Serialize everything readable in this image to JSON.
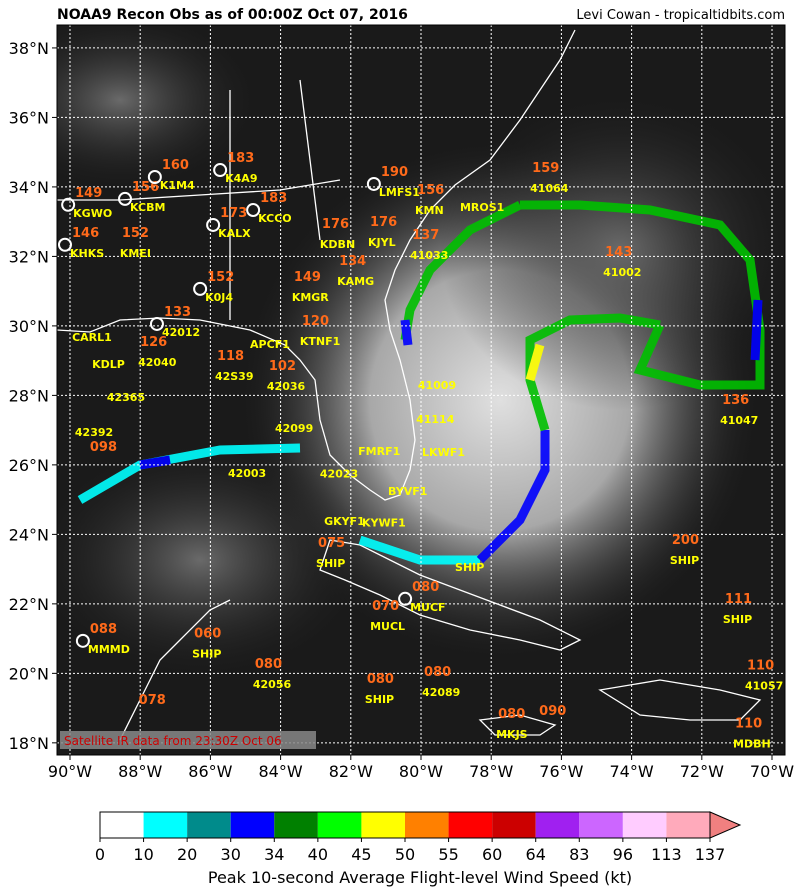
{
  "header": {
    "title": "NOAA9 Recon Obs as of 00:00Z Oct 07, 2016",
    "credit": "Levi Cowan - tropicaltidbits.com"
  },
  "map": {
    "lon_range": [
      -90.37,
      -69.63
    ],
    "lat_range": [
      17.65,
      38.66
    ],
    "lon_ticks": [
      {
        "value": -90,
        "label": "90°W"
      },
      {
        "value": -88,
        "label": "88°W"
      },
      {
        "value": -86,
        "label": "86°W"
      },
      {
        "value": -84,
        "label": "84°W"
      },
      {
        "value": -82,
        "label": "82°W"
      },
      {
        "value": -80,
        "label": "80°W"
      },
      {
        "value": -78,
        "label": "78°W"
      },
      {
        "value": -76,
        "label": "76°W"
      },
      {
        "value": -74,
        "label": "74°W"
      },
      {
        "value": -72,
        "label": "72°W"
      },
      {
        "value": -70,
        "label": "70°W"
      }
    ],
    "lat_ticks": [
      {
        "value": 38,
        "label": "38°N"
      },
      {
        "value": 36,
        "label": "36°N"
      },
      {
        "value": 34,
        "label": "34°N"
      },
      {
        "value": 32,
        "label": "32°N"
      },
      {
        "value": 30,
        "label": "30°N"
      },
      {
        "value": 28,
        "label": "28°N"
      },
      {
        "value": 26,
        "label": "26°N"
      },
      {
        "value": 24,
        "label": "24°N"
      },
      {
        "value": 22,
        "label": "22°N"
      },
      {
        "value": 20,
        "label": "20°N"
      },
      {
        "value": 18,
        "label": "18°N"
      }
    ],
    "note": "Satellite IR data from 23:30Z Oct 06",
    "stations": [
      {
        "id": "KGWO",
        "wind": "149",
        "lon": -89.91,
        "lat": 33.14,
        "marker": true
      },
      {
        "id": "KCBM",
        "wind": "156",
        "lon": -88.29,
        "lat": 33.31,
        "marker": true
      },
      {
        "id": "K1M4",
        "wind": "160",
        "lon": -87.44,
        "lat": 33.94,
        "marker": true
      },
      {
        "id": "K4A9",
        "wind": "183",
        "lon": -85.58,
        "lat": 34.14,
        "marker": true
      },
      {
        "id": "KHKS",
        "wind": "146",
        "lon": -90.0,
        "lat": 31.99,
        "marker": true
      },
      {
        "id": "KMEI",
        "wind": "152",
        "lon": -88.58,
        "lat": 31.99
      },
      {
        "id": "KALX",
        "wind": "173",
        "lon": -85.78,
        "lat": 32.56,
        "marker": true
      },
      {
        "id": "KCCO",
        "wind": "183",
        "lon": -84.64,
        "lat": 32.99,
        "marker": true
      },
      {
        "id": "KDBN",
        "wind": "176",
        "lon": -82.88,
        "lat": 32.24
      },
      {
        "id": "K0J4",
        "wind": "152",
        "lon": -86.15,
        "lat": 30.72,
        "marker": true
      },
      {
        "id": "KMGR",
        "wind": "149",
        "lon": -83.68,
        "lat": 30.72
      },
      {
        "id": "KAMG",
        "wind": "134",
        "lon": -82.39,
        "lat": 31.18
      },
      {
        "id": "KJYL",
        "wind": "176",
        "lon": -81.51,
        "lat": 32.3
      },
      {
        "id": "LMFS1",
        "wind": "190",
        "lon": -81.2,
        "lat": 33.74,
        "marker": true
      },
      {
        "id": "KMN",
        "wind": "156",
        "lon": -80.17,
        "lat": 33.22
      },
      {
        "id": "MROS1",
        "lon": -78.89,
        "lat": 33.31
      },
      {
        "id": "41064",
        "wind": "159",
        "lon": -76.89,
        "lat": 33.86
      },
      {
        "id": "41033",
        "wind": "137",
        "lon": -80.31,
        "lat": 31.93
      },
      {
        "id": "41002",
        "wind": "143",
        "lon": -74.81,
        "lat": 31.44
      },
      {
        "id": "CARL1",
        "lon": -89.94,
        "lat": 29.57
      },
      {
        "id": "42012",
        "wind": "133",
        "lon": -87.38,
        "lat": 29.71,
        "marker": true
      },
      {
        "id": "KDLP",
        "lon": -89.37,
        "lat": 28.79
      },
      {
        "id": "42040",
        "wind": "126",
        "lon": -88.06,
        "lat": 28.85
      },
      {
        "id": "APCF1",
        "lon": -84.87,
        "lat": 29.37
      },
      {
        "id": "KTNF1",
        "wind": "120",
        "lon": -83.45,
        "lat": 29.45
      },
      {
        "id": "42S39",
        "wind": "118",
        "lon": -85.87,
        "lat": 28.45
      },
      {
        "id": "42036",
        "wind": "102",
        "lon": -84.39,
        "lat": 28.16
      },
      {
        "id": "42365",
        "lon": -88.95,
        "lat": 27.84
      },
      {
        "id": "42392",
        "lon": -89.86,
        "lat": 26.83
      },
      {
        "id": "42099",
        "lon": -84.16,
        "lat": 26.95
      },
      {
        "id": "42003",
        "lon": -85.5,
        "lat": 25.65
      },
      {
        "id": "42023",
        "lon": -82.88,
        "lat": 25.63
      },
      {
        "id": "FMRF1",
        "lon": -81.79,
        "lat": 26.29
      },
      {
        "id": "LKWF1",
        "lon": -79.97,
        "lat": 26.26
      },
      {
        "id": "41009",
        "lon": -80.09,
        "lat": 28.19
      },
      {
        "id": "41114",
        "lon": -80.14,
        "lat": 27.21
      },
      {
        "id": "41047",
        "wind": "136",
        "lon": -71.48,
        "lat": 27.18
      },
      {
        "id": "BYVF1",
        "lon": -80.94,
        "lat": 25.14
      },
      {
        "id": "GKYF1",
        "lon": -82.76,
        "lat": 24.27
      },
      {
        "id": "KYWF1",
        "lon": -81.68,
        "lat": 24.22
      },
      {
        "id": "SHIP",
        "wind": "075",
        "lon": -82.99,
        "lat": 23.06
      },
      {
        "id": "SHIP",
        "lon": -79.03,
        "lat": 22.95
      },
      {
        "id": "MUCF",
        "wind": "080",
        "lon": -80.31,
        "lat": 21.8,
        "marker": true
      },
      {
        "id": "MUCL",
        "wind": "070",
        "lon": -81.45,
        "lat": 21.25
      },
      {
        "id": "SHIP",
        "wind": "200",
        "lon": -72.91,
        "lat": 23.15
      },
      {
        "id": "SHIP",
        "wind": "111",
        "lon": -71.4,
        "lat": 21.45
      },
      {
        "id": "MMMD",
        "wind": "088",
        "lon": -89.49,
        "lat": 20.59,
        "marker": true
      },
      {
        "id": "SHIP",
        "wind": "060",
        "lon": -86.52,
        "lat": 20.45
      },
      {
        "id": "42056",
        "wind": "080",
        "lon": -84.79,
        "lat": 19.58
      },
      {
        "id": "42089",
        "wind": "080",
        "lon": -79.97,
        "lat": 19.35
      },
      {
        "id": "SHIP",
        "wind": "080",
        "lon": -81.6,
        "lat": 19.15
      },
      {
        "id": "41057",
        "wind": "110",
        "lon": -70.77,
        "lat": 19.53
      },
      {
        "id": "MDBH",
        "wind": "110",
        "lon": -71.11,
        "lat": 17.86
      },
      {
        "id": "MKJS",
        "wind": "080",
        "lon": -77.86,
        "lat": 18.14
      },
      {
        "wind": "090",
        "lon": -76.69,
        "lat": 18.22
      },
      {
        "wind": "098",
        "lon": -89.49,
        "lat": 25.83
      },
      {
        "wind": "078",
        "lon": -88.1,
        "lat": 18.54
      }
    ]
  },
  "colorbar": {
    "title": "Peak 10-second Average Flight-level Wind Speed (kt)",
    "ticks": [
      0,
      10,
      20,
      30,
      34,
      40,
      45,
      50,
      55,
      60,
      64,
      83,
      96,
      113,
      137
    ],
    "colors": [
      "#ffffff",
      "#00ffff",
      "#008b8b",
      "#0000ff",
      "#008000",
      "#00ff00",
      "#ffff00",
      "#ff8000",
      "#ff0000",
      "#cc0000",
      "#a020f0",
      "#cc66ff",
      "#ffccff",
      "#ffaabb",
      "#f08080"
    ]
  }
}
